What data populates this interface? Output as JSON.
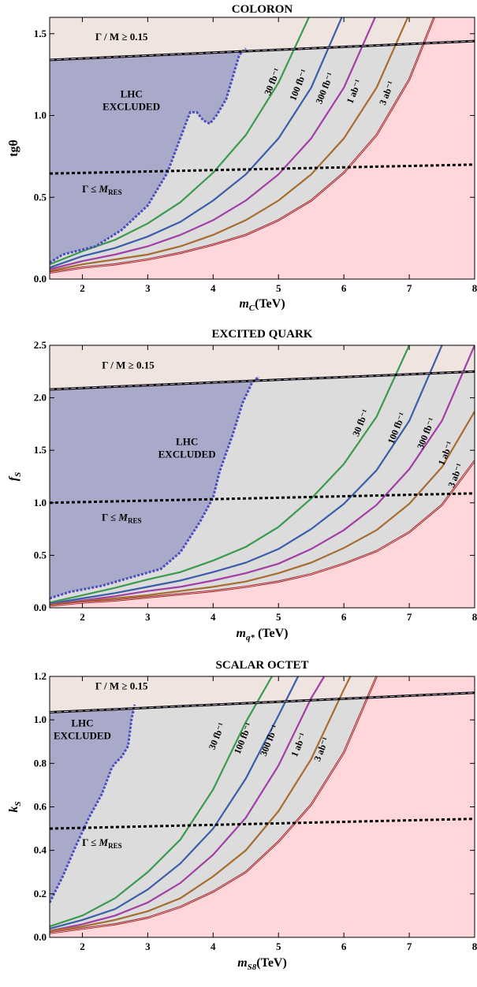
{
  "colors": {
    "excluded": "#a9aac9",
    "allowed_band": "#dcdcdc",
    "below_reach": "#ffd6da",
    "wide_width": "#f0e4e1",
    "lhc_boundary": "#4a4cc0",
    "width_line": "#000000",
    "series": {
      "30 fb^-1": "#3a9a4f",
      "100 fb^-1": "#3a5ea8",
      "300 fb^-1": "#a23ea5",
      "1 ab^-1": "#a66c30",
      "3 ab^-1": "#9e2327"
    }
  },
  "chart_data": [
    {
      "type": "line",
      "title": "COLORON",
      "xlabel": "m_C(TeV)",
      "ylabel": "tgθ",
      "xlim": [
        1.5,
        8
      ],
      "ylim": [
        0,
        1.6
      ],
      "xticks": [
        "2",
        "3",
        "4",
        "5",
        "6",
        "7",
        "8"
      ],
      "yticks": [
        "0.0",
        "0.5",
        "1.0",
        "1.5"
      ],
      "annotations": {
        "wide_width": "Γ / M ≥ 0.15",
        "narrow_width": "Γ ≤ M_RES",
        "excluded": [
          "LHC",
          "EXCLUDED"
        ]
      },
      "width_bound_line": {
        "x": [
          1.5,
          8
        ],
        "y": [
          1.34,
          1.455
        ]
      },
      "narrow_width_line": {
        "x": [
          1.5,
          8
        ],
        "y": [
          0.645,
          0.7
        ]
      },
      "lhc_exclusion": {
        "x": [
          1.5,
          1.7,
          2.2,
          2.6,
          3.0,
          3.3,
          3.6,
          3.65,
          3.75,
          3.85,
          3.95,
          4.05,
          4.2,
          4.4,
          4.5
        ],
        "y": [
          0.1,
          0.15,
          0.2,
          0.3,
          0.45,
          0.65,
          0.97,
          1.02,
          1.02,
          0.97,
          0.95,
          1.0,
          1.1,
          1.37,
          1.41
        ]
      },
      "series": [
        {
          "name": "30 fb^-1",
          "x": [
            1.5,
            2.0,
            2.5,
            3.0,
            3.5,
            4.0,
            4.5,
            5.0,
            5.5
          ],
          "y": [
            0.09,
            0.17,
            0.24,
            0.34,
            0.47,
            0.65,
            0.88,
            1.2,
            1.63
          ]
        },
        {
          "name": "100 fb^-1",
          "x": [
            1.5,
            2.0,
            2.5,
            3.0,
            3.5,
            4.0,
            4.5,
            5.0,
            5.5,
            6.0
          ],
          "y": [
            0.07,
            0.14,
            0.19,
            0.26,
            0.35,
            0.48,
            0.64,
            0.86,
            1.17,
            1.63
          ]
        },
        {
          "name": "300 fb^-1",
          "x": [
            1.5,
            2.0,
            2.5,
            3.0,
            3.5,
            4.0,
            4.5,
            5.0,
            5.5,
            6.0,
            6.5
          ],
          "y": [
            0.06,
            0.11,
            0.15,
            0.2,
            0.27,
            0.36,
            0.48,
            0.64,
            0.86,
            1.17,
            1.62
          ]
        },
        {
          "name": "1 ab^-1",
          "x": [
            1.5,
            2.0,
            2.5,
            3.0,
            3.5,
            4.0,
            4.5,
            5.0,
            5.5,
            6.0,
            6.5,
            7.0
          ],
          "y": [
            0.05,
            0.09,
            0.12,
            0.15,
            0.2,
            0.27,
            0.36,
            0.48,
            0.64,
            0.86,
            1.17,
            1.62
          ]
        },
        {
          "name": "3 ab^-1",
          "x": [
            1.5,
            2.0,
            2.5,
            3.0,
            3.5,
            4.0,
            4.5,
            5.0,
            5.5,
            6.0,
            6.5,
            7.0,
            7.4
          ],
          "y": [
            0.04,
            0.07,
            0.09,
            0.12,
            0.16,
            0.21,
            0.27,
            0.36,
            0.48,
            0.65,
            0.88,
            1.22,
            1.62
          ]
        }
      ]
    },
    {
      "type": "line",
      "title": "EXCITED QUARK",
      "xlabel": "m_q* (TeV)",
      "ylabel": "f_S",
      "xlim": [
        1.5,
        8
      ],
      "ylim": [
        0,
        2.5
      ],
      "xticks": [
        "2",
        "3",
        "4",
        "5",
        "6",
        "7",
        "8"
      ],
      "yticks": [
        "0.0",
        "0.5",
        "1.0",
        "1.5",
        "2.0",
        "2.5"
      ],
      "annotations": {
        "wide_width": "Γ / M ≥ 0.15",
        "narrow_width": "Γ ≤ M_RES",
        "excluded": [
          "LHC",
          "EXCLUDED"
        ]
      },
      "width_bound_line": {
        "x": [
          1.5,
          8
        ],
        "y": [
          2.08,
          2.25
        ]
      },
      "narrow_width_line": {
        "x": [
          1.5,
          8
        ],
        "y": [
          1.0,
          1.09
        ]
      },
      "lhc_exclusion": {
        "x": [
          1.5,
          1.8,
          2.3,
          2.8,
          3.2,
          3.5,
          3.8,
          4.0,
          4.1,
          4.3,
          4.45,
          4.6,
          4.7
        ],
        "y": [
          0.09,
          0.15,
          0.21,
          0.3,
          0.37,
          0.53,
          0.82,
          1.05,
          1.3,
          1.65,
          1.95,
          2.15,
          2.2
        ]
      },
      "series": [
        {
          "name": "30 fb^-1",
          "x": [
            1.5,
            2.0,
            2.5,
            3.0,
            3.5,
            4.0,
            4.5,
            5.0,
            5.5,
            6.0,
            6.5,
            7.0
          ],
          "y": [
            0.05,
            0.12,
            0.19,
            0.27,
            0.34,
            0.45,
            0.58,
            0.77,
            1.04,
            1.37,
            1.82,
            2.5
          ]
        },
        {
          "name": "100 fb^-1",
          "x": [
            1.5,
            2.0,
            2.5,
            3.0,
            3.5,
            4.0,
            4.5,
            5.0,
            5.5,
            6.0,
            6.5,
            7.0,
            7.5
          ],
          "y": [
            0.04,
            0.09,
            0.14,
            0.2,
            0.26,
            0.34,
            0.43,
            0.56,
            0.75,
            0.99,
            1.31,
            1.78,
            2.5
          ]
        },
        {
          "name": "300 fb^-1",
          "x": [
            1.5,
            2.0,
            2.5,
            3.0,
            3.5,
            4.0,
            4.5,
            5.0,
            5.5,
            6.0,
            6.5,
            7.0,
            7.5,
            8.0
          ],
          "y": [
            0.03,
            0.07,
            0.11,
            0.16,
            0.2,
            0.26,
            0.33,
            0.42,
            0.56,
            0.74,
            0.98,
            1.32,
            1.78,
            2.5
          ]
        },
        {
          "name": "1 ab^-1",
          "x": [
            1.5,
            2.0,
            2.5,
            3.0,
            3.5,
            4.0,
            4.5,
            5.0,
            5.5,
            6.0,
            6.5,
            7.0,
            7.5,
            8.0
          ],
          "y": [
            0.03,
            0.06,
            0.09,
            0.12,
            0.16,
            0.2,
            0.25,
            0.33,
            0.43,
            0.57,
            0.74,
            0.99,
            1.34,
            1.87
          ]
        },
        {
          "name": "3 ab^-1",
          "x": [
            1.5,
            2.0,
            2.5,
            3.0,
            3.5,
            4.0,
            4.5,
            5.0,
            5.5,
            6.0,
            6.5,
            7.0,
            7.5,
            8.0
          ],
          "y": [
            0.02,
            0.05,
            0.07,
            0.1,
            0.13,
            0.16,
            0.2,
            0.25,
            0.32,
            0.42,
            0.54,
            0.72,
            0.98,
            1.4
          ]
        }
      ]
    },
    {
      "type": "line",
      "title": "SCALAR OCTET",
      "xlabel": "m_S8(TeV)",
      "ylabel": "k_S",
      "xlim": [
        1.5,
        8
      ],
      "ylim": [
        0,
        1.2
      ],
      "xticks": [
        "2",
        "3",
        "4",
        "5",
        "6",
        "7",
        "8"
      ],
      "yticks": [
        "0.0",
        "0.2",
        "0.4",
        "0.6",
        "0.8",
        "1.0",
        "1.2"
      ],
      "annotations": {
        "wide_width": "Γ / M ≥ 0.15",
        "narrow_width": "Γ ≤ M_RES",
        "excluded": [
          "LHC",
          "EXCLUDED"
        ]
      },
      "width_bound_line": {
        "x": [
          1.5,
          8
        ],
        "y": [
          1.035,
          1.125
        ]
      },
      "narrow_width_line": {
        "x": [
          1.5,
          8
        ],
        "y": [
          0.5,
          0.545
        ]
      },
      "lhc_exclusion": {
        "x": [
          1.5,
          1.7,
          1.9,
          2.1,
          2.3,
          2.45,
          2.5,
          2.6,
          2.7,
          2.75,
          2.8
        ],
        "y": [
          0.16,
          0.28,
          0.42,
          0.55,
          0.66,
          0.78,
          0.8,
          0.83,
          0.88,
          1.0,
          1.07
        ]
      },
      "series": [
        {
          "name": "30 fb^-1",
          "x": [
            1.5,
            2.0,
            2.5,
            3.0,
            3.5,
            4.0,
            4.5,
            4.9
          ],
          "y": [
            0.05,
            0.1,
            0.18,
            0.3,
            0.45,
            0.68,
            0.99,
            1.2
          ]
        },
        {
          "name": "100 fb^-1",
          "x": [
            1.5,
            2.0,
            2.5,
            3.0,
            3.5,
            4.0,
            4.5,
            5.0,
            5.3
          ],
          "y": [
            0.04,
            0.08,
            0.13,
            0.22,
            0.34,
            0.5,
            0.73,
            1.02,
            1.2
          ]
        },
        {
          "name": "300 fb^-1",
          "x": [
            1.5,
            2.0,
            2.5,
            3.0,
            3.5,
            4.0,
            4.5,
            5.0,
            5.5,
            5.7
          ],
          "y": [
            0.03,
            0.06,
            0.1,
            0.16,
            0.25,
            0.38,
            0.55,
            0.79,
            1.1,
            1.2
          ]
        },
        {
          "name": "1 ab^-1",
          "x": [
            1.5,
            2.0,
            2.5,
            3.0,
            3.5,
            4.0,
            4.5,
            5.0,
            5.5,
            6.0,
            6.1
          ],
          "y": [
            0.03,
            0.05,
            0.08,
            0.12,
            0.18,
            0.28,
            0.4,
            0.58,
            0.82,
            1.14,
            1.2
          ]
        },
        {
          "name": "3 ab^-1",
          "x": [
            1.5,
            2.0,
            2.5,
            3.0,
            3.5,
            4.0,
            4.5,
            5.0,
            5.5,
            6.0,
            6.5
          ],
          "y": [
            0.02,
            0.04,
            0.06,
            0.09,
            0.14,
            0.21,
            0.3,
            0.44,
            0.61,
            0.85,
            1.2
          ]
        }
      ]
    }
  ],
  "series_labels": {
    "30 fb^-1": "30 fb⁻¹",
    "100 fb^-1": "100 fb⁻¹",
    "300 fb^-1": "300 fb⁻¹",
    "1 ab^-1": "1 ab⁻¹",
    "3 ab^-1": "3 ab⁻¹"
  }
}
